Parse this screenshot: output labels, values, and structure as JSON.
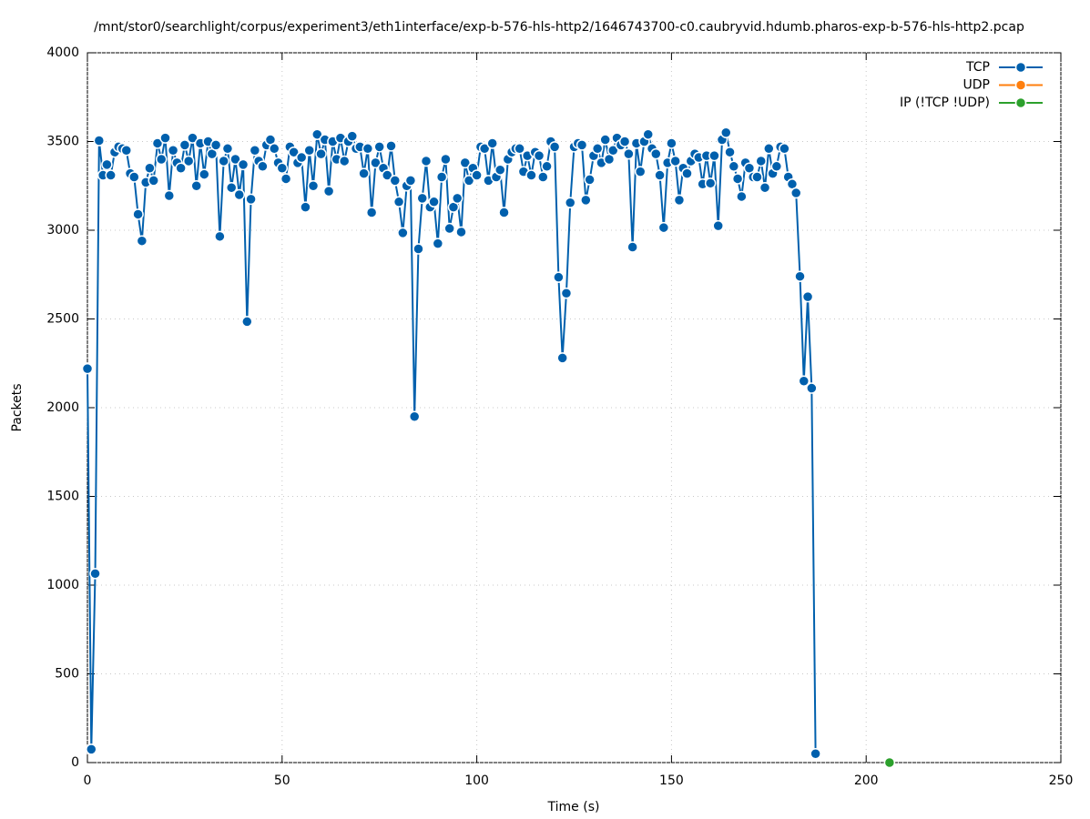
{
  "chart_data": {
    "type": "line",
    "title": "/mnt/stor0/searchlight/corpus/experiment3/eth1interface/exp-b-576-hls-http2/1646743700-c0.caubryvid.hdumb.pharos-exp-b-576-hls-http2.pcap",
    "x_label": "Time (s)",
    "y_label": "Packets",
    "xlim": [
      0,
      250
    ],
    "xticks": [
      0,
      50,
      100,
      150,
      200,
      250
    ],
    "ylim": [
      0,
      4000
    ],
    "yticks": [
      0,
      500,
      1000,
      1500,
      2000,
      2500,
      3000,
      3500,
      4000
    ],
    "grid": true,
    "legend": "top-right",
    "series": [
      {
        "name": "TCP",
        "color": "#0060ad",
        "x": [
          0,
          1,
          2,
          3,
          4,
          5,
          6,
          7,
          8,
          9,
          10,
          11,
          12,
          13,
          14,
          15,
          16,
          17,
          18,
          19,
          20,
          21,
          22,
          23,
          24,
          25,
          26,
          27,
          28,
          29,
          30,
          31,
          32,
          33,
          34,
          35,
          36,
          37,
          38,
          39,
          40,
          41,
          42,
          43,
          44,
          45,
          46,
          47,
          48,
          49,
          50,
          51,
          52,
          53,
          54,
          55,
          56,
          57,
          58,
          59,
          60,
          61,
          62,
          63,
          64,
          65,
          66,
          67,
          68,
          69,
          70,
          71,
          72,
          73,
          74,
          75,
          76,
          77,
          78,
          79,
          80,
          81,
          82,
          83,
          84,
          85,
          86,
          87,
          88,
          89,
          90,
          91,
          92,
          93,
          94,
          95,
          96,
          97,
          98,
          99,
          100,
          101,
          102,
          103,
          104,
          105,
          106,
          107,
          108,
          109,
          110,
          111,
          112,
          113,
          114,
          115,
          116,
          117,
          118,
          119,
          120,
          121,
          122,
          123,
          124,
          125,
          126,
          127,
          128,
          129,
          130,
          131,
          132,
          133,
          134,
          135,
          136,
          137,
          138,
          139,
          140,
          141,
          142,
          143,
          144,
          145,
          146,
          147,
          148,
          149,
          150,
          151,
          152,
          153,
          154,
          155,
          156,
          157,
          158,
          159,
          160,
          161,
          162,
          163,
          164,
          165,
          166,
          167,
          168,
          169,
          170,
          171,
          172,
          173,
          174,
          175,
          176,
          177,
          178,
          179,
          180,
          181,
          182,
          183,
          184,
          185,
          186,
          187
        ],
        "values": [
          2220,
          75,
          1065,
          3505,
          3310,
          3370,
          3310,
          3440,
          3470,
          3460,
          3450,
          3320,
          3300,
          3090,
          2940,
          3270,
          3350,
          3280,
          3490,
          3400,
          3520,
          3195,
          3450,
          3380,
          3350,
          3480,
          3390,
          3520,
          3250,
          3490,
          3315,
          3500,
          3430,
          3480,
          2965,
          3390,
          3460,
          3240,
          3400,
          3200,
          3370,
          2485,
          3175,
          3450,
          3390,
          3360,
          3480,
          3510,
          3460,
          3380,
          3350,
          3290,
          3470,
          3440,
          3380,
          3410,
          3130,
          3450,
          3250,
          3540,
          3430,
          3510,
          3220,
          3500,
          3400,
          3520,
          3390,
          3500,
          3530,
          3460,
          3470,
          3320,
          3460,
          3100,
          3380,
          3470,
          3350,
          3310,
          3475,
          3280,
          3160,
          2985,
          3250,
          3280,
          1950,
          2895,
          3180,
          3390,
          3130,
          3160,
          2925,
          3300,
          3400,
          3010,
          3130,
          3180,
          2990,
          3380,
          3280,
          3350,
          3310,
          3470,
          3460,
          3280,
          3490,
          3300,
          3340,
          3100,
          3400,
          3440,
          3460,
          3460,
          3330,
          3420,
          3310,
          3440,
          3420,
          3300,
          3360,
          3500,
          3470,
          2735,
          2280,
          2645,
          3155,
          3470,
          3490,
          3480,
          3170,
          3285,
          3420,
          3460,
          3380,
          3510,
          3400,
          3450,
          3520,
          3480,
          3500,
          3430,
          2905,
          3490,
          3330,
          3500,
          3540,
          3460,
          3430,
          3310,
          3015,
          3380,
          3490,
          3390,
          3170,
          3350,
          3320,
          3390,
          3430,
          3410,
          3260,
          3420,
          3265,
          3420,
          3025,
          3510,
          3550,
          3440,
          3360,
          3290,
          3190,
          3380,
          3350,
          3300,
          3300,
          3390,
          3240,
          3460,
          3320,
          3360,
          3470,
          3460,
          3300,
          3260,
          3210,
          2740,
          2150,
          2625,
          2110,
          50
        ]
      },
      {
        "name": "UDP",
        "color": "#ff7f0e",
        "x": [],
        "values": []
      },
      {
        "name": "IP (!TCP  !UDP)",
        "color": "#2ca02c",
        "x": [
          206
        ],
        "values": [
          0
        ]
      }
    ]
  }
}
